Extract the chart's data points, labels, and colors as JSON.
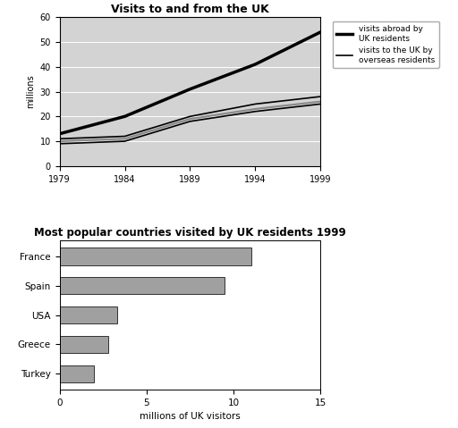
{
  "line_chart": {
    "title": "Visits to and from the UK",
    "ylabel": "millions",
    "xlim": [
      1979,
      1999
    ],
    "ylim": [
      0,
      60
    ],
    "yticks": [
      0,
      10,
      20,
      30,
      40,
      50,
      60
    ],
    "xticks": [
      1979,
      1984,
      1989,
      1994,
      1999
    ],
    "years": [
      1979,
      1984,
      1989,
      1994,
      1999
    ],
    "visits_abroad": [
      13,
      20,
      31,
      41,
      54
    ],
    "overseas_upper": [
      11,
      12,
      20,
      25,
      28
    ],
    "overseas_mid": [
      10,
      11,
      19,
      23,
      26
    ],
    "overseas_lower": [
      9,
      10,
      18,
      22,
      25
    ],
    "line_color_abroad": "#000000",
    "line_color_overseas_dark": "#000000",
    "line_color_overseas_light": "#888888",
    "bg_color": "#d3d3d3",
    "legend_abroad": "visits abroad by\nUK residents",
    "legend_overseas": "visits to the UK by\noverseas residents"
  },
  "bar_chart": {
    "title": "Most popular countries visited by UK residents 1999",
    "xlabel": "millions of UK visitors",
    "xlim": [
      0,
      15
    ],
    "xticks": [
      0,
      5,
      10,
      15
    ],
    "countries": [
      "Turkey",
      "Greece",
      "USA",
      "Spain",
      "France"
    ],
    "values": [
      2.0,
      2.8,
      3.3,
      9.5,
      11.0
    ],
    "bar_color": "#a0a0a0",
    "bar_edgecolor": "#333333"
  }
}
